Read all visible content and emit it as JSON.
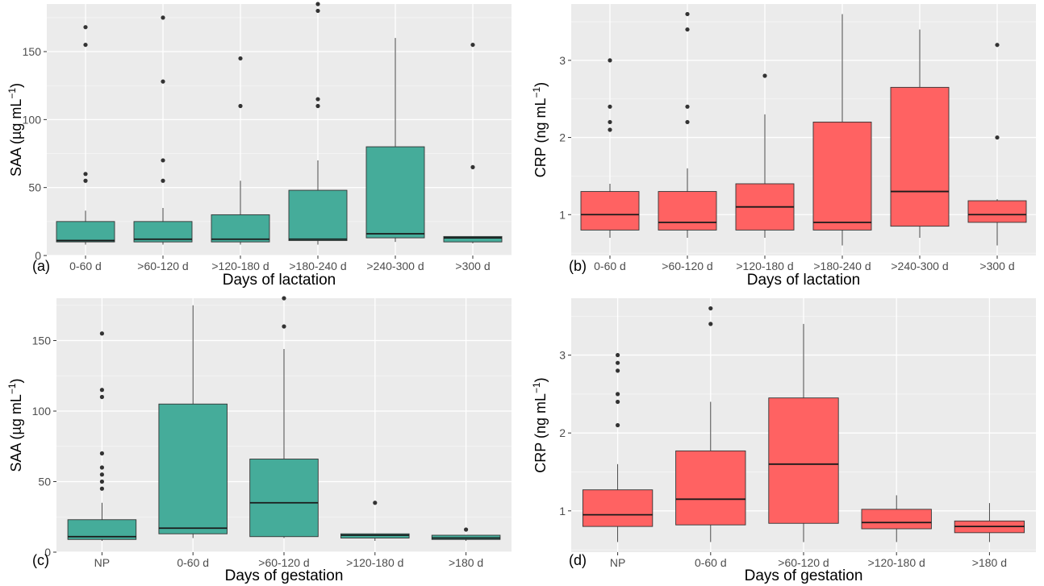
{
  "chart_data": [
    {
      "type": "box",
      "panel_label": "(a)",
      "xlabel": "Days of lactation",
      "ylabel_main": "SAA (µg mL",
      "ylabel_sup": "−1",
      "ylabel_close": ")",
      "ylim": [
        0,
        185
      ],
      "yticks": [
        0,
        50,
        100,
        150
      ],
      "yticklabels": [
        "0",
        "50",
        "100",
        "150"
      ],
      "fill": "#45AC9A",
      "categories": [
        "0-60 d",
        ">60-120 d",
        ">120-180 d",
        ">180-240 d",
        ">240-300 d",
        ">300 d"
      ],
      "boxes": [
        {
          "low": 8,
          "q1": 10,
          "median": 11,
          "q3": 25,
          "high": 33,
          "outliers": [
            55,
            60,
            155,
            168
          ]
        },
        {
          "low": 8,
          "q1": 10,
          "median": 12,
          "q3": 25,
          "high": 35,
          "outliers": [
            55,
            70,
            128,
            175
          ]
        },
        {
          "low": 8,
          "q1": 10,
          "median": 12,
          "q3": 30,
          "high": 55,
          "outliers": [
            110,
            145
          ]
        },
        {
          "low": 8,
          "q1": 11,
          "median": 12,
          "q3": 48,
          "high": 70,
          "outliers": [
            110,
            115,
            180,
            185
          ]
        },
        {
          "low": 10,
          "q1": 13,
          "median": 16,
          "q3": 80,
          "high": 160,
          "outliers": []
        },
        {
          "low": 9,
          "q1": 10,
          "median": 13,
          "q3": 14,
          "high": 14,
          "outliers": [
            65,
            155
          ]
        }
      ]
    },
    {
      "type": "box",
      "panel_label": "(b)",
      "xlabel": "Days of lactation",
      "ylabel_main": "CRP (ng mL",
      "ylabel_sup": "−1",
      "ylabel_close": ")",
      "ylim": [
        0.47,
        3.73
      ],
      "yticks": [
        1,
        2,
        3
      ],
      "yticklabels": [
        "1",
        "2",
        "3"
      ],
      "fill": "#FF6262",
      "categories": [
        "0-60 d",
        ">60-120 d",
        ">120-180 d",
        ">180-240 d",
        ">240-300 d",
        ">300 d"
      ],
      "boxes": [
        {
          "low": 0.7,
          "q1": 0.8,
          "median": 1.0,
          "q3": 1.3,
          "high": 1.4,
          "outliers": [
            2.1,
            2.2,
            2.4,
            3.0
          ]
        },
        {
          "low": 0.7,
          "q1": 0.8,
          "median": 0.9,
          "q3": 1.3,
          "high": 1.6,
          "outliers": [
            2.2,
            2.4,
            3.4,
            3.6
          ]
        },
        {
          "low": 0.7,
          "q1": 0.8,
          "median": 1.1,
          "q3": 1.4,
          "high": 2.3,
          "outliers": [
            2.8
          ]
        },
        {
          "low": 0.6,
          "q1": 0.8,
          "median": 0.9,
          "q3": 2.2,
          "high": 3.6,
          "outliers": []
        },
        {
          "low": 0.7,
          "q1": 0.85,
          "median": 1.3,
          "q3": 2.65,
          "high": 3.4,
          "outliers": []
        },
        {
          "low": 0.6,
          "q1": 0.9,
          "median": 1.0,
          "q3": 1.18,
          "high": 1.2,
          "outliers": [
            2.0,
            3.2
          ]
        }
      ]
    },
    {
      "type": "box",
      "panel_label": "(c)",
      "xlabel": "Days of gestation",
      "ylabel_main": "SAA (µg mL",
      "ylabel_sup": "−1",
      "ylabel_close": ")",
      "ylim": [
        0,
        180
      ],
      "yticks": [
        0,
        50,
        100,
        150
      ],
      "yticklabels": [
        "0",
        "50",
        "100",
        "150"
      ],
      "fill": "#45AC9A",
      "categories": [
        "NP",
        "0-60 d",
        ">60-120 d",
        ">120-180 d",
        ">180 d"
      ],
      "boxes": [
        {
          "low": 8,
          "q1": 9,
          "median": 11,
          "q3": 23,
          "high": 35,
          "outliers": [
            45,
            50,
            55,
            60,
            70,
            110,
            115,
            155
          ]
        },
        {
          "low": 10,
          "q1": 13,
          "median": 17,
          "q3": 105,
          "high": 175,
          "outliers": []
        },
        {
          "low": 10,
          "q1": 11,
          "median": 35,
          "q3": 66,
          "high": 144,
          "outliers": [
            160,
            180
          ]
        },
        {
          "low": 8,
          "q1": 10,
          "median": 12,
          "q3": 13,
          "high": 13,
          "outliers": [
            35
          ]
        },
        {
          "low": 8,
          "q1": 9,
          "median": 10,
          "q3": 12,
          "high": 12,
          "outliers": [
            16
          ]
        }
      ]
    },
    {
      "type": "box",
      "panel_label": "(d)",
      "xlabel": "Days of gestation",
      "ylabel_main": "CRP (ng mL",
      "ylabel_sup": "−1",
      "ylabel_close": ")",
      "ylim": [
        0.47,
        3.73
      ],
      "yticks": [
        1,
        2,
        3
      ],
      "yticklabels": [
        "1",
        "2",
        "3"
      ],
      "fill": "#FF6262",
      "categories": [
        "NP",
        "0-60 d",
        ">60-120 d",
        ">120-180 d",
        ">180 d"
      ],
      "boxes": [
        {
          "low": 0.6,
          "q1": 0.8,
          "median": 0.95,
          "q3": 1.27,
          "high": 1.6,
          "outliers": [
            2.1,
            2.4,
            2.5,
            2.8,
            2.9,
            3.0
          ]
        },
        {
          "low": 0.6,
          "q1": 0.82,
          "median": 1.15,
          "q3": 1.77,
          "high": 2.4,
          "outliers": [
            3.4,
            3.6
          ]
        },
        {
          "low": 0.6,
          "q1": 0.84,
          "median": 1.6,
          "q3": 2.45,
          "high": 3.4,
          "outliers": []
        },
        {
          "low": 0.6,
          "q1": 0.77,
          "median": 0.85,
          "q3": 1.02,
          "high": 1.2,
          "outliers": []
        },
        {
          "low": 0.6,
          "q1": 0.72,
          "median": 0.8,
          "q3": 0.87,
          "high": 1.1,
          "outliers": []
        }
      ]
    }
  ]
}
